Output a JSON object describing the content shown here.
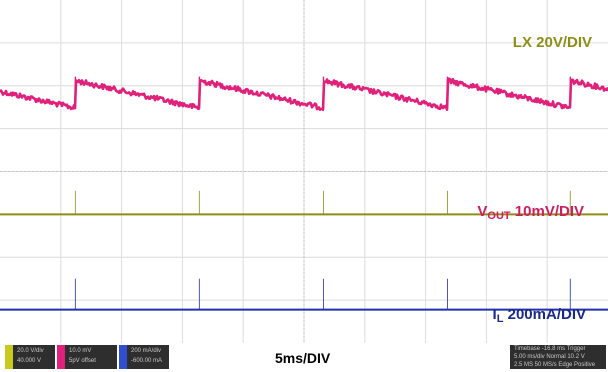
{
  "chart_data": {
    "type": "line",
    "x_unit": "ms",
    "x_range": [
      0,
      50
    ],
    "grid": true,
    "timebase_label": "5ms/DIV",
    "series": [
      {
        "name": "LX 20V/DIV",
        "color": "#8e8e16",
        "baseline_div": -1.0,
        "pulse_x_ms": [
          6.2,
          16.4,
          26.6,
          36.8,
          46.9
        ],
        "pulse_height_div": 0.55
      },
      {
        "name": "VOUT 10mV/DIV",
        "color": "#e0207a",
        "shape": "sawtooth",
        "peak_div": 2.12,
        "trough_div": 1.48,
        "step_x_ms": [
          6.2,
          16.4,
          26.6,
          36.8,
          46.9
        ],
        "noise_div": 0.06
      },
      {
        "name": "IL 200mA/DIV",
        "color": "#1f2fb0",
        "baseline_div": -3.22,
        "pulse_x_ms": [
          6.2,
          16.4,
          26.6,
          36.8,
          46.9
        ],
        "pulse_height_div": 0.72
      }
    ]
  },
  "labels": {
    "lx_text": "LX 20V/DIV",
    "vout_main": "V",
    "vout_sub": "OUT",
    "vout_rest": " 10mV/DIV",
    "il_main": "I",
    "il_sub": "L",
    "il_rest": " 200mA/DIV"
  },
  "status": {
    "ch1_tag_color": "#c8c81e",
    "ch1_row1": "20.0 V/div",
    "ch1_row2": "40.000 V",
    "ch2_tag_color": "#e0207a",
    "ch2_row1": "10.0 mV",
    "ch2_row2": "5pV offset",
    "ch3_tag_color": "#2f4fd0",
    "ch3_row1": "200 mA/div",
    "ch3_row2": "-600.00 mA",
    "timebase": "5ms/DIV",
    "tb_row1": "Timebase   -16.8 ms   Trigger",
    "tb_row2": "5.00 ms/div   Normal   10.2 V",
    "tb_row3": "2.5 MS   50 MS/s   Edge   Positive"
  }
}
